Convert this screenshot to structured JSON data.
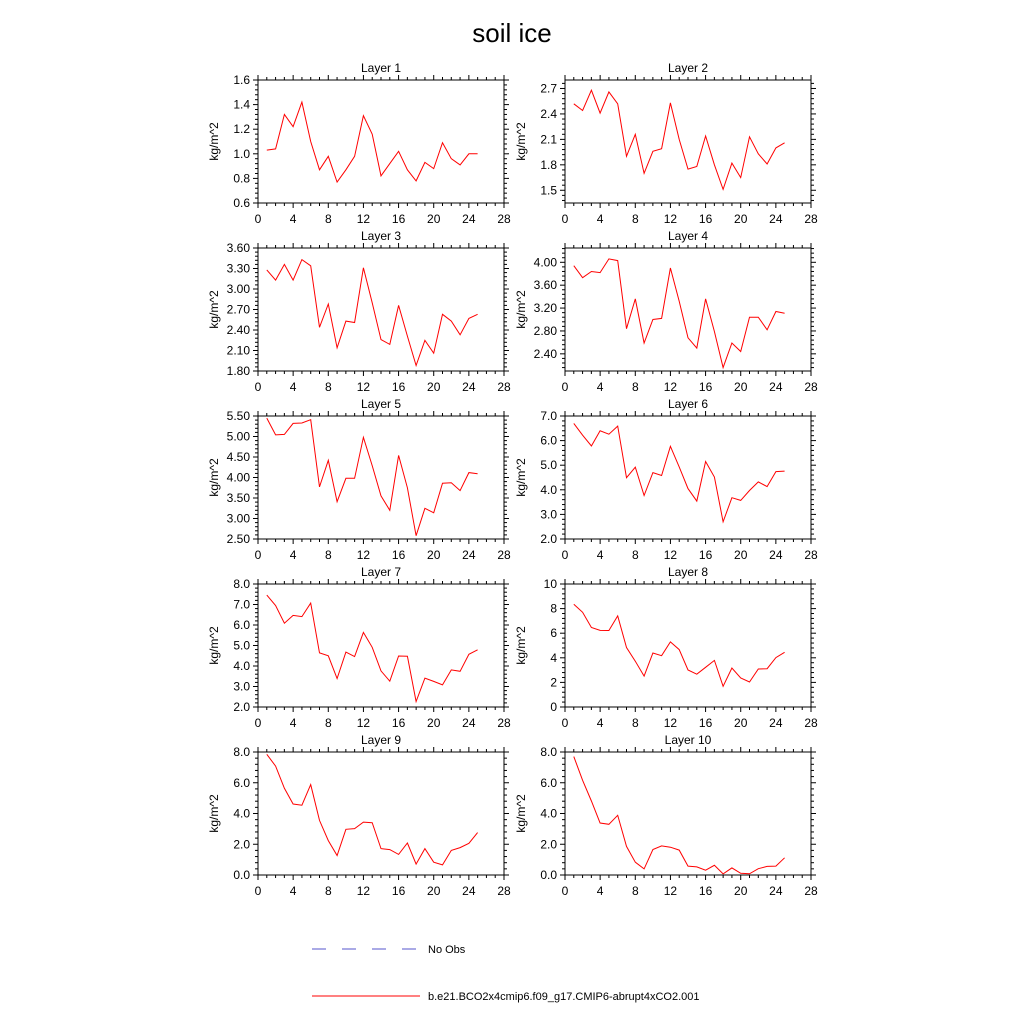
{
  "title": "soil ice",
  "colors": {
    "model": "#ff0000",
    "obs": "#5555cc",
    "axis": "#000000"
  },
  "legend": [
    {
      "name": "No Obs",
      "style": "dashed",
      "color": "#5555cc"
    },
    {
      "name": "b.e21.BCO2x4cmip6.f09_g17.CMIP6-abrupt4xCO2.001",
      "style": "solid",
      "color": "#ff0000"
    }
  ],
  "chart_data": [
    {
      "type": "line",
      "title": "Layer 1",
      "ylabel": "kg/m^2",
      "xlim": [
        0,
        28
      ],
      "xticks": [
        "0",
        "4",
        "8",
        "12",
        "16",
        "20",
        "24",
        "28"
      ],
      "ylim": [
        0.6,
        1.6
      ],
      "yticks": [
        "0.6",
        "0.8",
        "1.0",
        "1.2",
        "1.4",
        "1.6"
      ],
      "x": [
        1,
        2,
        3,
        4,
        5,
        6,
        7,
        8,
        9,
        10,
        11,
        12,
        13,
        14,
        15,
        16,
        17,
        18,
        19,
        20,
        21,
        22,
        23,
        24,
        25
      ],
      "series": [
        {
          "values": [
            1.03,
            1.04,
            1.32,
            1.22,
            1.42,
            1.1,
            0.87,
            0.98,
            0.77,
            0.87,
            0.98,
            1.31,
            1.16,
            0.82,
            0.92,
            1.02,
            0.87,
            0.78,
            0.93,
            0.88,
            1.09,
            0.96,
            0.91,
            1.0,
            1.0
          ]
        }
      ]
    },
    {
      "type": "line",
      "title": "Layer 2",
      "ylabel": "kg/m^2",
      "xlim": [
        0,
        28
      ],
      "xticks": [
        "0",
        "4",
        "8",
        "12",
        "16",
        "20",
        "24",
        "28"
      ],
      "ylim": [
        1.35,
        2.8
      ],
      "yticks": [
        "1.5",
        "1.8",
        "2.1",
        "2.4",
        "2.7"
      ],
      "x": [
        1,
        2,
        3,
        4,
        5,
        6,
        7,
        8,
        9,
        10,
        11,
        12,
        13,
        14,
        15,
        16,
        17,
        18,
        19,
        20,
        21,
        22,
        23,
        24,
        25
      ],
      "series": [
        {
          "values": [
            2.52,
            2.44,
            2.68,
            2.41,
            2.66,
            2.52,
            1.9,
            2.16,
            1.7,
            1.96,
            1.99,
            2.53,
            2.1,
            1.75,
            1.78,
            2.14,
            1.8,
            1.51,
            1.82,
            1.65,
            2.13,
            1.93,
            1.81,
            2.0,
            2.06
          ]
        }
      ]
    },
    {
      "type": "line",
      "title": "Layer 3",
      "ylabel": "kg/m^2",
      "xlim": [
        0,
        28
      ],
      "xticks": [
        "0",
        "4",
        "8",
        "12",
        "16",
        "20",
        "24",
        "28"
      ],
      "ylim": [
        1.8,
        3.6
      ],
      "yticks": [
        "1.80",
        "2.10",
        "2.40",
        "2.70",
        "3.00",
        "3.30",
        "3.60"
      ],
      "x": [
        1,
        2,
        3,
        4,
        5,
        6,
        7,
        8,
        9,
        10,
        11,
        12,
        13,
        14,
        15,
        16,
        17,
        18,
        19,
        20,
        21,
        22,
        23,
        24,
        25
      ],
      "series": [
        {
          "values": [
            3.28,
            3.13,
            3.36,
            3.13,
            3.43,
            3.34,
            2.44,
            2.78,
            2.14,
            2.53,
            2.51,
            3.31,
            2.8,
            2.26,
            2.19,
            2.76,
            2.31,
            1.88,
            2.25,
            2.06,
            2.63,
            2.53,
            2.33,
            2.57,
            2.63
          ]
        }
      ]
    },
    {
      "type": "line",
      "title": "Layer 4",
      "ylabel": "kg/m^2",
      "xlim": [
        0,
        28
      ],
      "xticks": [
        "0",
        "4",
        "8",
        "12",
        "16",
        "20",
        "24",
        "28"
      ],
      "ylim": [
        2.1,
        4.25
      ],
      "yticks": [
        "2.40",
        "2.80",
        "3.20",
        "3.60",
        "4.00"
      ],
      "x": [
        1,
        2,
        3,
        4,
        5,
        6,
        7,
        8,
        9,
        10,
        11,
        12,
        13,
        14,
        15,
        16,
        17,
        18,
        19,
        20,
        21,
        22,
        23,
        24,
        25
      ],
      "series": [
        {
          "values": [
            3.94,
            3.73,
            3.84,
            3.82,
            4.06,
            4.03,
            2.84,
            3.36,
            2.59,
            3.0,
            3.02,
            3.9,
            3.32,
            2.68,
            2.5,
            3.36,
            2.79,
            2.16,
            2.59,
            2.44,
            3.04,
            3.04,
            2.82,
            3.14,
            3.11
          ]
        }
      ]
    },
    {
      "type": "line",
      "title": "Layer 5",
      "ylabel": "kg/m^2",
      "xlim": [
        0,
        28
      ],
      "xticks": [
        "0",
        "4",
        "8",
        "12",
        "16",
        "20",
        "24",
        "28"
      ],
      "ylim": [
        2.5,
        5.5
      ],
      "yticks": [
        "2.50",
        "3.00",
        "3.50",
        "4.00",
        "4.50",
        "5.00",
        "5.50"
      ],
      "x": [
        1,
        2,
        3,
        4,
        5,
        6,
        7,
        8,
        9,
        10,
        11,
        12,
        13,
        14,
        15,
        16,
        17,
        18,
        19,
        20,
        21,
        22,
        23,
        24,
        25
      ],
      "series": [
        {
          "values": [
            5.45,
            5.04,
            5.05,
            5.32,
            5.33,
            5.41,
            3.77,
            4.42,
            3.41,
            3.98,
            3.98,
            4.98,
            4.29,
            3.55,
            3.2,
            4.54,
            3.75,
            2.58,
            3.25,
            3.14,
            3.86,
            3.87,
            3.68,
            4.12,
            4.09
          ]
        }
      ]
    },
    {
      "type": "line",
      "title": "Layer 6",
      "ylabel": "kg/m^2",
      "xlim": [
        0,
        28
      ],
      "xticks": [
        "0",
        "4",
        "8",
        "12",
        "16",
        "20",
        "24",
        "28"
      ],
      "ylim": [
        2.0,
        7.0
      ],
      "yticks": [
        "2.0",
        "3.0",
        "4.0",
        "5.0",
        "6.0",
        "7.0"
      ],
      "x": [
        1,
        2,
        3,
        4,
        5,
        6,
        7,
        8,
        9,
        10,
        11,
        12,
        13,
        14,
        15,
        16,
        17,
        18,
        19,
        20,
        21,
        22,
        23,
        24,
        25
      ],
      "series": [
        {
          "values": [
            6.7,
            6.22,
            5.78,
            6.4,
            6.26,
            6.59,
            4.49,
            4.92,
            3.77,
            4.7,
            4.58,
            5.77,
            4.93,
            4.05,
            3.54,
            5.15,
            4.52,
            2.7,
            3.68,
            3.57,
            3.97,
            4.32,
            4.13,
            4.74,
            4.76
          ]
        }
      ]
    },
    {
      "type": "line",
      "title": "Layer 7",
      "ylabel": "kg/m^2",
      "xlim": [
        0,
        28
      ],
      "xticks": [
        "0",
        "4",
        "8",
        "12",
        "16",
        "20",
        "24",
        "28"
      ],
      "ylim": [
        2.0,
        8.0
      ],
      "yticks": [
        "2.0",
        "3.0",
        "4.0",
        "5.0",
        "6.0",
        "7.0",
        "8.0"
      ],
      "x": [
        1,
        2,
        3,
        4,
        5,
        6,
        7,
        8,
        9,
        10,
        11,
        12,
        13,
        14,
        15,
        16,
        17,
        18,
        19,
        20,
        21,
        22,
        23,
        24,
        25
      ],
      "series": [
        {
          "values": [
            7.46,
            6.95,
            6.09,
            6.47,
            6.41,
            7.07,
            4.64,
            4.5,
            3.39,
            4.68,
            4.46,
            5.64,
            4.91,
            3.76,
            3.26,
            4.49,
            4.48,
            2.27,
            3.41,
            3.25,
            3.08,
            3.81,
            3.74,
            4.57,
            4.79
          ]
        }
      ]
    },
    {
      "type": "line",
      "title": "Layer 8",
      "ylabel": "kg/m^2",
      "xlim": [
        0,
        28
      ],
      "xticks": [
        "0",
        "4",
        "8",
        "12",
        "16",
        "20",
        "24",
        "28"
      ],
      "ylim": [
        0,
        10
      ],
      "yticks": [
        "0",
        "2",
        "4",
        "6",
        "8",
        "10"
      ],
      "x": [
        1,
        2,
        3,
        4,
        5,
        6,
        7,
        8,
        9,
        10,
        11,
        12,
        13,
        14,
        15,
        16,
        17,
        18,
        19,
        20,
        21,
        22,
        23,
        24,
        25
      ],
      "series": [
        {
          "values": [
            8.35,
            7.7,
            6.46,
            6.23,
            6.22,
            7.41,
            4.84,
            3.72,
            2.51,
            4.39,
            4.17,
            5.29,
            4.67,
            3.01,
            2.67,
            3.23,
            3.79,
            1.68,
            3.17,
            2.36,
            2.03,
            3.09,
            3.11,
            4.02,
            4.45
          ]
        }
      ]
    },
    {
      "type": "line",
      "title": "Layer 9",
      "ylabel": "kg/m^2",
      "xlim": [
        0,
        28
      ],
      "xticks": [
        "0",
        "4",
        "8",
        "12",
        "16",
        "20",
        "24",
        "28"
      ],
      "ylim": [
        0,
        8
      ],
      "yticks": [
        "0.0",
        "2.0",
        "4.0",
        "6.0",
        "8.0"
      ],
      "x": [
        1,
        2,
        3,
        4,
        5,
        6,
        7,
        8,
        9,
        10,
        11,
        12,
        13,
        14,
        15,
        16,
        17,
        18,
        19,
        20,
        21,
        22,
        23,
        24,
        25
      ],
      "series": [
        {
          "values": [
            7.85,
            7.08,
            5.64,
            4.62,
            4.54,
            5.88,
            3.55,
            2.24,
            1.27,
            2.97,
            3.02,
            3.44,
            3.4,
            1.72,
            1.65,
            1.34,
            2.08,
            0.71,
            1.72,
            0.83,
            0.66,
            1.6,
            1.78,
            2.06,
            2.76
          ]
        }
      ]
    },
    {
      "type": "line",
      "title": "Layer 10",
      "ylabel": "kg/m^2",
      "xlim": [
        0,
        28
      ],
      "xticks": [
        "0",
        "4",
        "8",
        "12",
        "16",
        "20",
        "24",
        "28"
      ],
      "ylim": [
        0,
        8
      ],
      "yticks": [
        "0.0",
        "2.0",
        "4.0",
        "6.0",
        "8.0"
      ],
      "x": [
        1,
        2,
        3,
        4,
        5,
        6,
        7,
        8,
        9,
        10,
        11,
        12,
        13,
        14,
        15,
        16,
        17,
        18,
        19,
        20,
        21,
        22,
        23,
        24,
        25
      ],
      "series": [
        {
          "values": [
            7.7,
            6.16,
            4.81,
            3.38,
            3.3,
            3.88,
            1.86,
            0.83,
            0.4,
            1.66,
            1.89,
            1.81,
            1.62,
            0.58,
            0.53,
            0.31,
            0.63,
            0.07,
            0.46,
            0.11,
            0.08,
            0.41,
            0.56,
            0.58,
            1.12
          ]
        }
      ]
    }
  ]
}
